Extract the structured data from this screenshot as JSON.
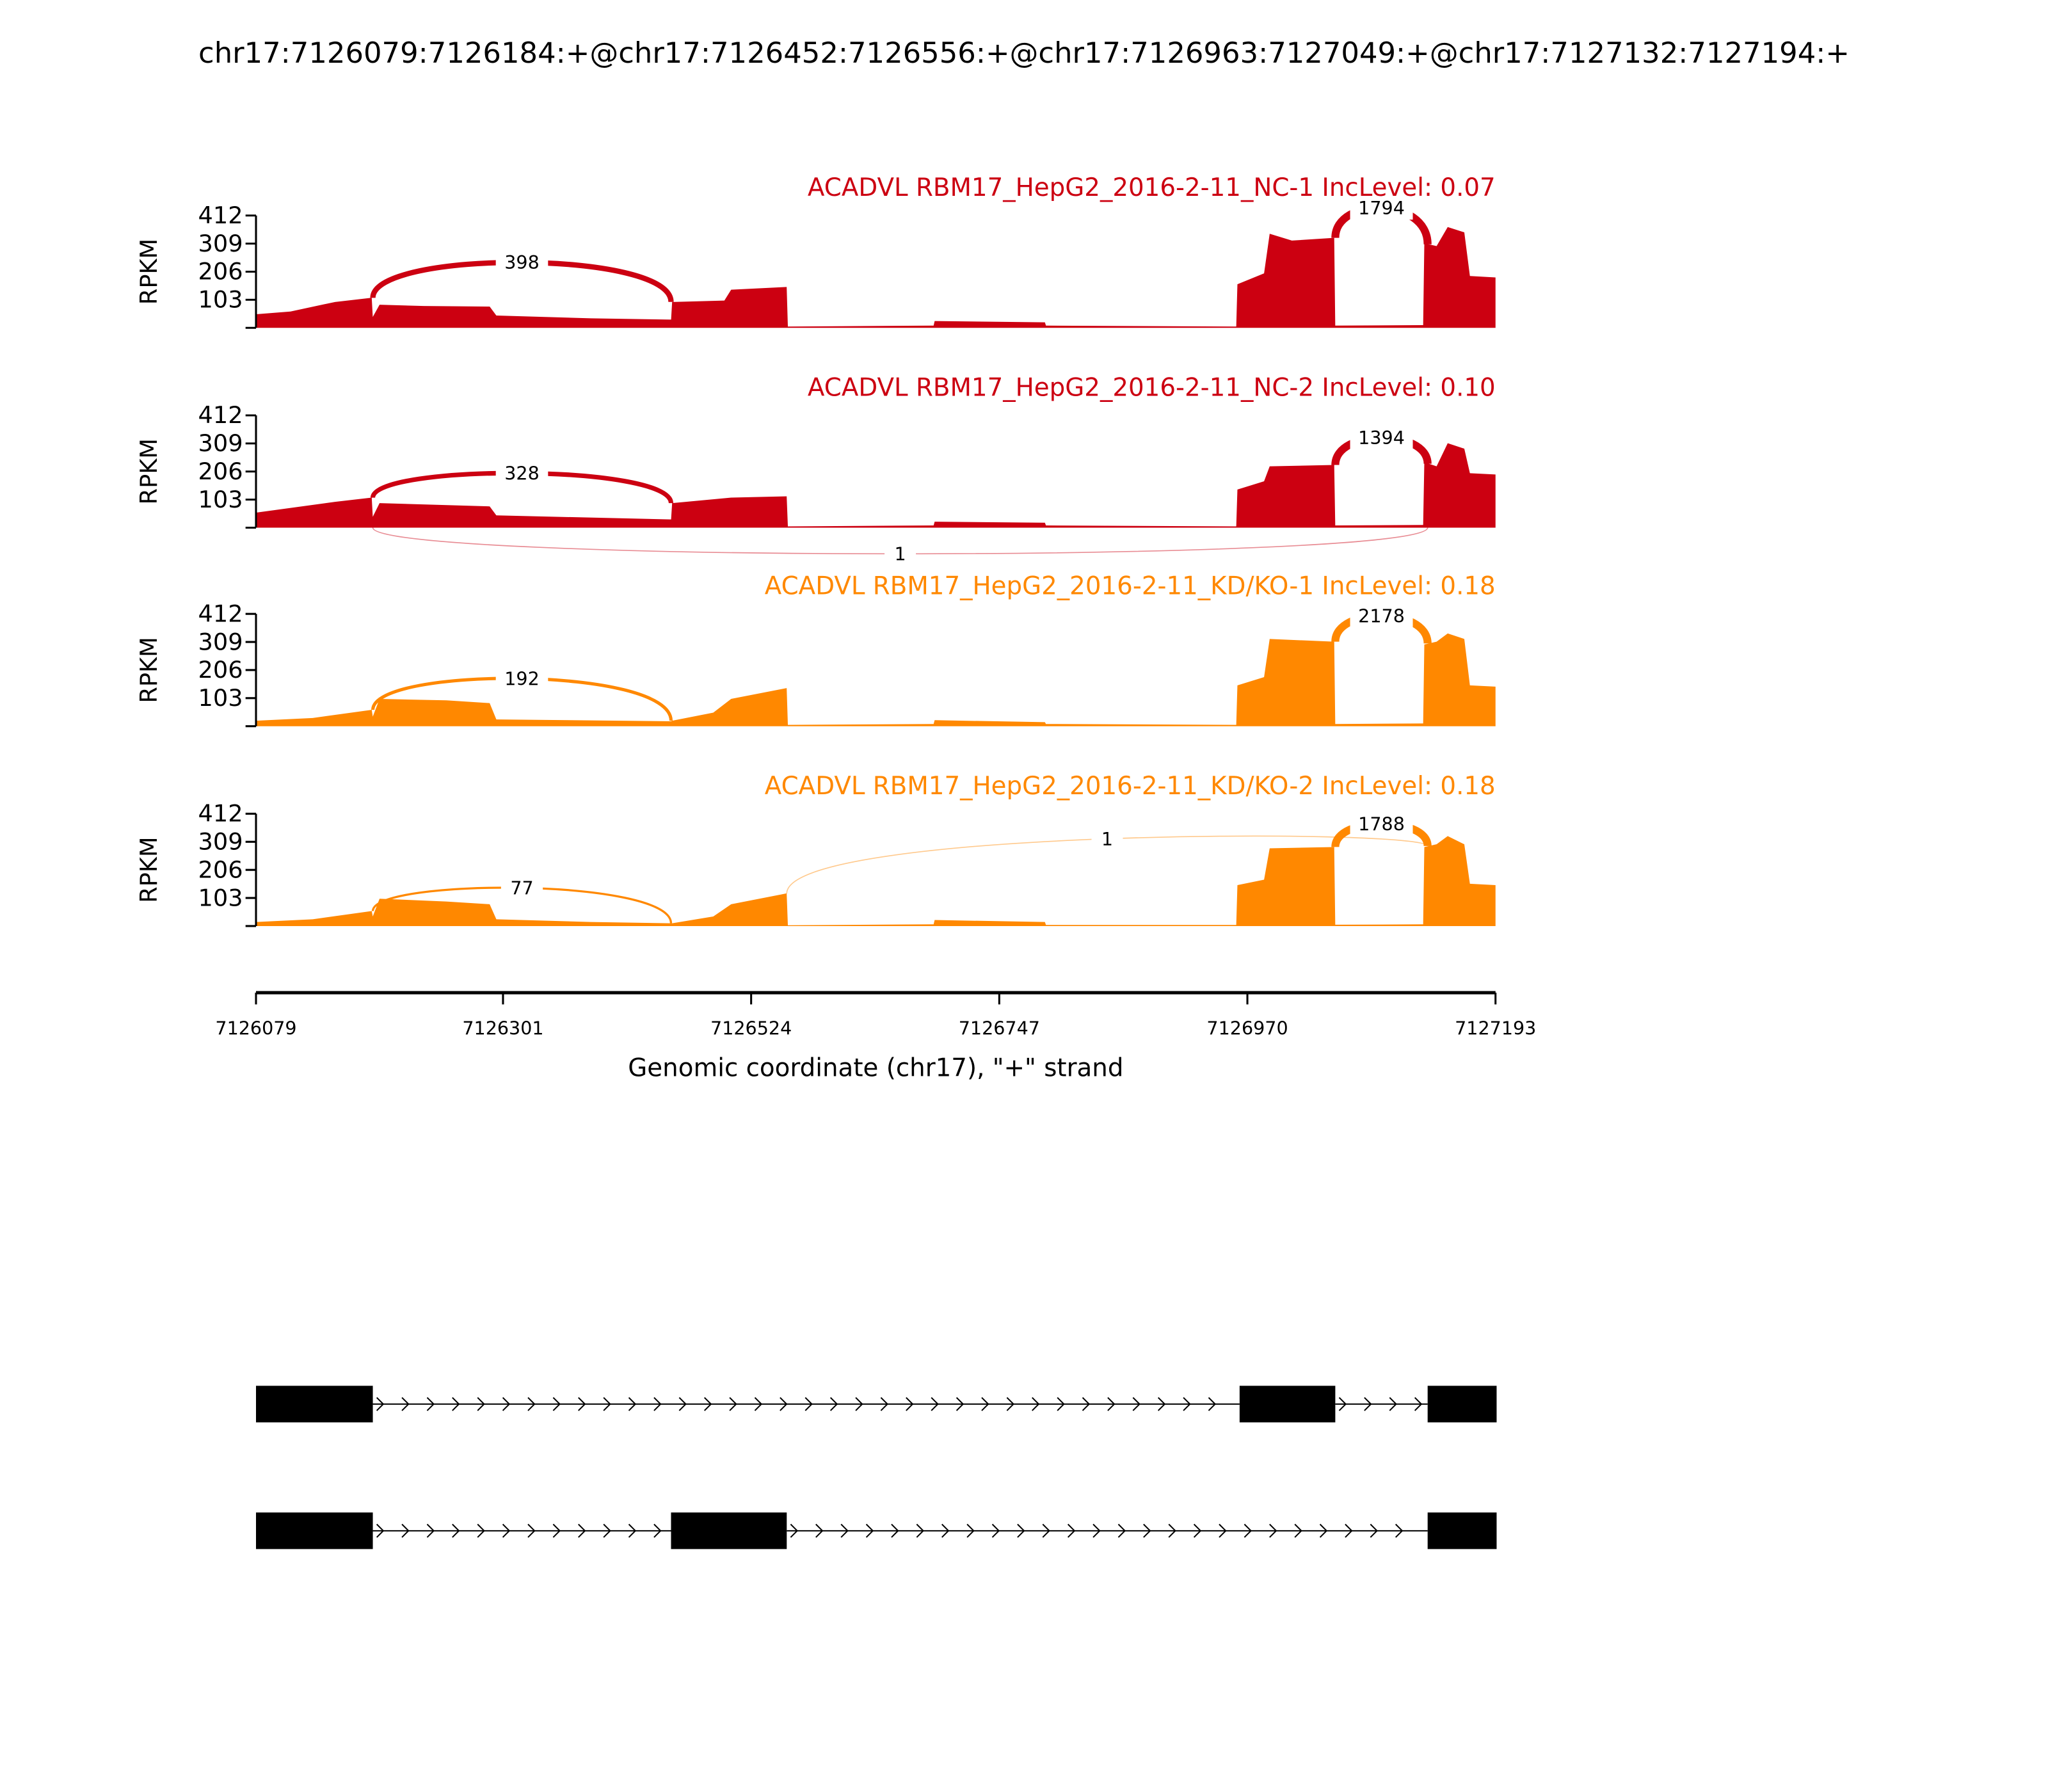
{
  "chart_data": {
    "type": "area",
    "title": "chr17:7126079:7126184:+@chr17:7126452:7126556:+@chr17:7126963:7127049:+@chr17:7127132:7127194:+",
    "xlabel": "Genomic coordinate (chr17), \"+\" strand",
    "ylabel": "RPKM",
    "xlim": [
      7126079,
      7127193
    ],
    "ylim": [
      0,
      412
    ],
    "yticks": [
      "103",
      "206",
      "309",
      "412"
    ],
    "xticks": [
      "7126079",
      "7126301",
      "7126524",
      "7126747",
      "7126970",
      "7127193"
    ],
    "samples": [
      {
        "title": "ACADVL RBM17_HepG2_2016-2-11_NC-1 IncLevel: 0.07",
        "color": "#cc0011",
        "coverage": [
          [
            7126079,
            50
          ],
          [
            7126110,
            60
          ],
          [
            7126150,
            95
          ],
          [
            7126183,
            110
          ],
          [
            7126184,
            40
          ],
          [
            7126190,
            85
          ],
          [
            7126230,
            80
          ],
          [
            7126289,
            78
          ],
          [
            7126295,
            45
          ],
          [
            7126380,
            35
          ],
          [
            7126452,
            30
          ],
          [
            7126453,
            95
          ],
          [
            7126500,
            100
          ],
          [
            7126506,
            140
          ],
          [
            7126556,
            150
          ],
          [
            7126557,
            5
          ],
          [
            7126688,
            8
          ],
          [
            7126689,
            25
          ],
          [
            7126788,
            20
          ],
          [
            7126789,
            8
          ],
          [
            7126960,
            5
          ],
          [
            7126961,
            160
          ],
          [
            7126985,
            200
          ],
          [
            7126990,
            345
          ],
          [
            7127010,
            320
          ],
          [
            7127048,
            330
          ],
          [
            7127049,
            8
          ],
          [
            7127128,
            10
          ],
          [
            7127129,
            310
          ],
          [
            7127140,
            300
          ],
          [
            7127150,
            370
          ],
          [
            7127165,
            350
          ],
          [
            7127170,
            190
          ],
          [
            7127193,
            185
          ]
        ],
        "junctions": [
          {
            "start": 7126184,
            "end": 7126452,
            "count": "398",
            "apex": 240,
            "side": "up"
          },
          {
            "start": 7127049,
            "end": 7127132,
            "count": "1794",
            "apex": 440,
            "side": "up"
          }
        ]
      },
      {
        "title": "ACADVL RBM17_HepG2_2016-2-11_NC-2 IncLevel: 0.10",
        "color": "#cc0011",
        "coverage": [
          [
            7126079,
            55
          ],
          [
            7126150,
            95
          ],
          [
            7126183,
            110
          ],
          [
            7126184,
            40
          ],
          [
            7126190,
            90
          ],
          [
            7126289,
            78
          ],
          [
            7126295,
            45
          ],
          [
            7126452,
            30
          ],
          [
            7126453,
            90
          ],
          [
            7126506,
            110
          ],
          [
            7126556,
            115
          ],
          [
            7126557,
            5
          ],
          [
            7126688,
            8
          ],
          [
            7126689,
            22
          ],
          [
            7126788,
            18
          ],
          [
            7126789,
            8
          ],
          [
            7126960,
            5
          ],
          [
            7126961,
            140
          ],
          [
            7126985,
            170
          ],
          [
            7126990,
            225
          ],
          [
            7127048,
            230
          ],
          [
            7127049,
            8
          ],
          [
            7127128,
            10
          ],
          [
            7127129,
            240
          ],
          [
            7127140,
            225
          ],
          [
            7127150,
            310
          ],
          [
            7127165,
            290
          ],
          [
            7127170,
            200
          ],
          [
            7127193,
            195
          ]
        ],
        "junctions": [
          {
            "start": 7126184,
            "end": 7126452,
            "count": "328",
            "apex": 200,
            "side": "up"
          },
          {
            "start": 7127049,
            "end": 7127132,
            "count": "1394",
            "apex": 330,
            "side": "up"
          },
          {
            "start": 7126184,
            "end": 7127132,
            "count": "1",
            "apex": 100,
            "side": "down"
          }
        ]
      },
      {
        "title": "ACADVL RBM17_HepG2_2016-2-11_KD/KO-1 IncLevel: 0.18",
        "color": "#ff8800",
        "coverage": [
          [
            7126079,
            20
          ],
          [
            7126130,
            30
          ],
          [
            7126183,
            60
          ],
          [
            7126184,
            35
          ],
          [
            7126190,
            100
          ],
          [
            7126250,
            95
          ],
          [
            7126289,
            85
          ],
          [
            7126295,
            25
          ],
          [
            7126452,
            18
          ],
          [
            7126453,
            20
          ],
          [
            7126490,
            50
          ],
          [
            7126506,
            100
          ],
          [
            7126556,
            140
          ],
          [
            7126557,
            5
          ],
          [
            7126688,
            8
          ],
          [
            7126689,
            22
          ],
          [
            7126788,
            15
          ],
          [
            7126789,
            8
          ],
          [
            7126960,
            5
          ],
          [
            7126961,
            150
          ],
          [
            7126985,
            180
          ],
          [
            7126990,
            320
          ],
          [
            7127048,
            310
          ],
          [
            7127049,
            8
          ],
          [
            7127128,
            10
          ],
          [
            7127129,
            300
          ],
          [
            7127140,
            310
          ],
          [
            7127150,
            340
          ],
          [
            7127165,
            320
          ],
          [
            7127170,
            150
          ],
          [
            7127193,
            145
          ]
        ],
        "junctions": [
          {
            "start": 7126184,
            "end": 7126452,
            "count": "192",
            "apex": 175,
            "side": "up"
          },
          {
            "start": 7127049,
            "end": 7127132,
            "count": "2178",
            "apex": 405,
            "side": "up"
          }
        ]
      },
      {
        "title": "ACADVL RBM17_HepG2_2016-2-11_KD/KO-2 IncLevel: 0.18",
        "color": "#ff8800",
        "coverage": [
          [
            7126079,
            15
          ],
          [
            7126130,
            25
          ],
          [
            7126183,
            55
          ],
          [
            7126184,
            35
          ],
          [
            7126190,
            100
          ],
          [
            7126250,
            90
          ],
          [
            7126289,
            80
          ],
          [
            7126295,
            25
          ],
          [
            7126380,
            15
          ],
          [
            7126452,
            10
          ],
          [
            7126453,
            10
          ],
          [
            7126490,
            35
          ],
          [
            7126506,
            80
          ],
          [
            7126556,
            120
          ],
          [
            7126557,
            3
          ],
          [
            7126688,
            6
          ],
          [
            7126689,
            22
          ],
          [
            7126788,
            15
          ],
          [
            7126789,
            4
          ],
          [
            7126960,
            4
          ],
          [
            7126961,
            150
          ],
          [
            7126985,
            170
          ],
          [
            7126990,
            285
          ],
          [
            7127048,
            290
          ],
          [
            7127049,
            5
          ],
          [
            7127128,
            6
          ],
          [
            7127129,
            290
          ],
          [
            7127140,
            300
          ],
          [
            7127150,
            330
          ],
          [
            7127165,
            300
          ],
          [
            7127170,
            155
          ],
          [
            7127193,
            150
          ]
        ],
        "junctions": [
          {
            "start": 7126184,
            "end": 7126452,
            "count": "77",
            "apex": 140,
            "side": "up"
          },
          {
            "start": 7127049,
            "end": 7127132,
            "count": "1788",
            "apex": 375,
            "side": "up"
          },
          {
            "start": 7126556,
            "end": 7127132,
            "count": "1",
            "apex": 320,
            "side": "up"
          }
        ]
      }
    ],
    "gene_models": [
      {
        "exons": [
          [
            7126079,
            7126184
          ],
          [
            7126963,
            7127049
          ],
          [
            7127132,
            7127194
          ]
        ]
      },
      {
        "exons": [
          [
            7126079,
            7126184
          ],
          [
            7126452,
            7126556
          ],
          [
            7127132,
            7127194
          ]
        ]
      }
    ]
  }
}
